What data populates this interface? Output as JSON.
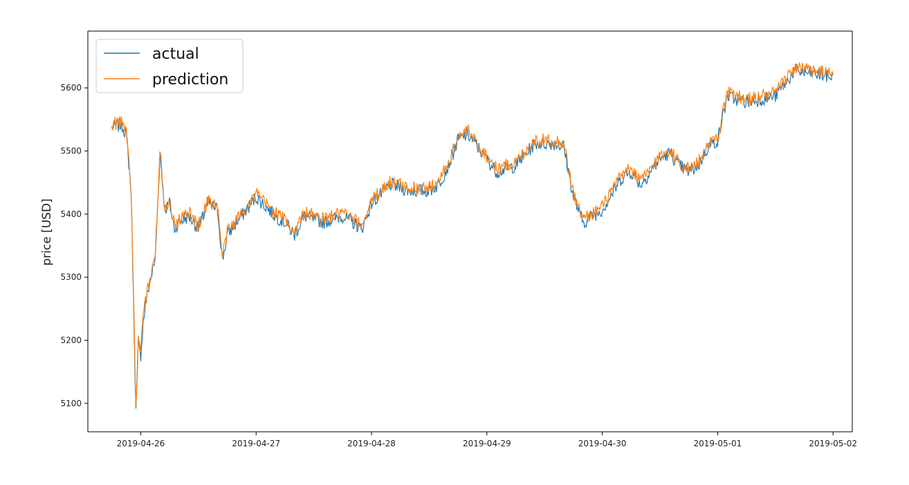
{
  "chart_data": {
    "type": "line",
    "title": "",
    "xlabel": "",
    "ylabel": "price [USD]",
    "x_ticks": [
      "2019-04-26",
      "2019-04-27",
      "2019-04-28",
      "2019-04-29",
      "2019-04-30",
      "2019-05-01",
      "2019-05-02"
    ],
    "y_ticks": [
      5100,
      5200,
      5300,
      5400,
      5500,
      5600
    ],
    "xlim": [
      "2019-04-25T13:00",
      "2019-05-02T04:00"
    ],
    "ylim": [
      5055,
      5690
    ],
    "grid": false,
    "legend_position": "top-left",
    "series": [
      {
        "name": "actual",
        "color": "#1f77b4"
      },
      {
        "name": "prediction",
        "color": "#ff7f0e"
      }
    ],
    "x": [
      "2019-04-25T18:00",
      "2019-04-25T20:00",
      "2019-04-25T21:00",
      "2019-04-25T22:00",
      "2019-04-25T23:00",
      "2019-04-25T23:30",
      "2019-04-26T00:00",
      "2019-04-26T00:30",
      "2019-04-26T01:00",
      "2019-04-26T02:00",
      "2019-04-26T03:00",
      "2019-04-26T04:00",
      "2019-04-26T05:00",
      "2019-04-26T06:00",
      "2019-04-26T07:00",
      "2019-04-26T08:00",
      "2019-04-26T10:00",
      "2019-04-26T12:00",
      "2019-04-26T14:00",
      "2019-04-26T16:00",
      "2019-04-26T17:00",
      "2019-04-26T18:00",
      "2019-04-26T20:00",
      "2019-04-26T22:00",
      "2019-04-27T00:00",
      "2019-04-27T04:00",
      "2019-04-27T06:00",
      "2019-04-27T08:00",
      "2019-04-27T10:00",
      "2019-04-27T14:00",
      "2019-04-27T18:00",
      "2019-04-27T22:00",
      "2019-04-28T00:00",
      "2019-04-28T04:00",
      "2019-04-28T08:00",
      "2019-04-28T12:00",
      "2019-04-28T14:00",
      "2019-04-28T16:00",
      "2019-04-28T18:00",
      "2019-04-28T20:00",
      "2019-04-29T00:00",
      "2019-04-29T02:00",
      "2019-04-29T06:00",
      "2019-04-29T10:00",
      "2019-04-29T12:00",
      "2019-04-29T14:00",
      "2019-04-29T16:00",
      "2019-04-29T18:00",
      "2019-04-29T20:00",
      "2019-04-30T00:00",
      "2019-04-30T04:00",
      "2019-04-30T06:00",
      "2019-04-30T08:00",
      "2019-04-30T12:00",
      "2019-04-30T14:00",
      "2019-04-30T16:00",
      "2019-04-30T18:00",
      "2019-04-30T20:00",
      "2019-04-30T22:00",
      "2019-05-01T00:00",
      "2019-05-01T02:00",
      "2019-05-01T06:00",
      "2019-05-01T12:00",
      "2019-05-01T16:00",
      "2019-05-01T20:00",
      "2019-05-02T00:00"
    ],
    "values": [
      5540,
      5545,
      5530,
      5440,
      5090,
      5200,
      5180,
      5230,
      5260,
      5300,
      5330,
      5500,
      5410,
      5420,
      5380,
      5390,
      5400,
      5380,
      5420,
      5410,
      5330,
      5370,
      5390,
      5410,
      5430,
      5400,
      5390,
      5370,
      5400,
      5390,
      5400,
      5380,
      5420,
      5450,
      5440,
      5440,
      5450,
      5480,
      5520,
      5530,
      5490,
      5470,
      5480,
      5515,
      5515,
      5515,
      5510,
      5430,
      5390,
      5410,
      5460,
      5470,
      5450,
      5490,
      5500,
      5480,
      5470,
      5480,
      5510,
      5520,
      5590,
      5580,
      5590,
      5630,
      5625,
      5620
    ]
  }
}
